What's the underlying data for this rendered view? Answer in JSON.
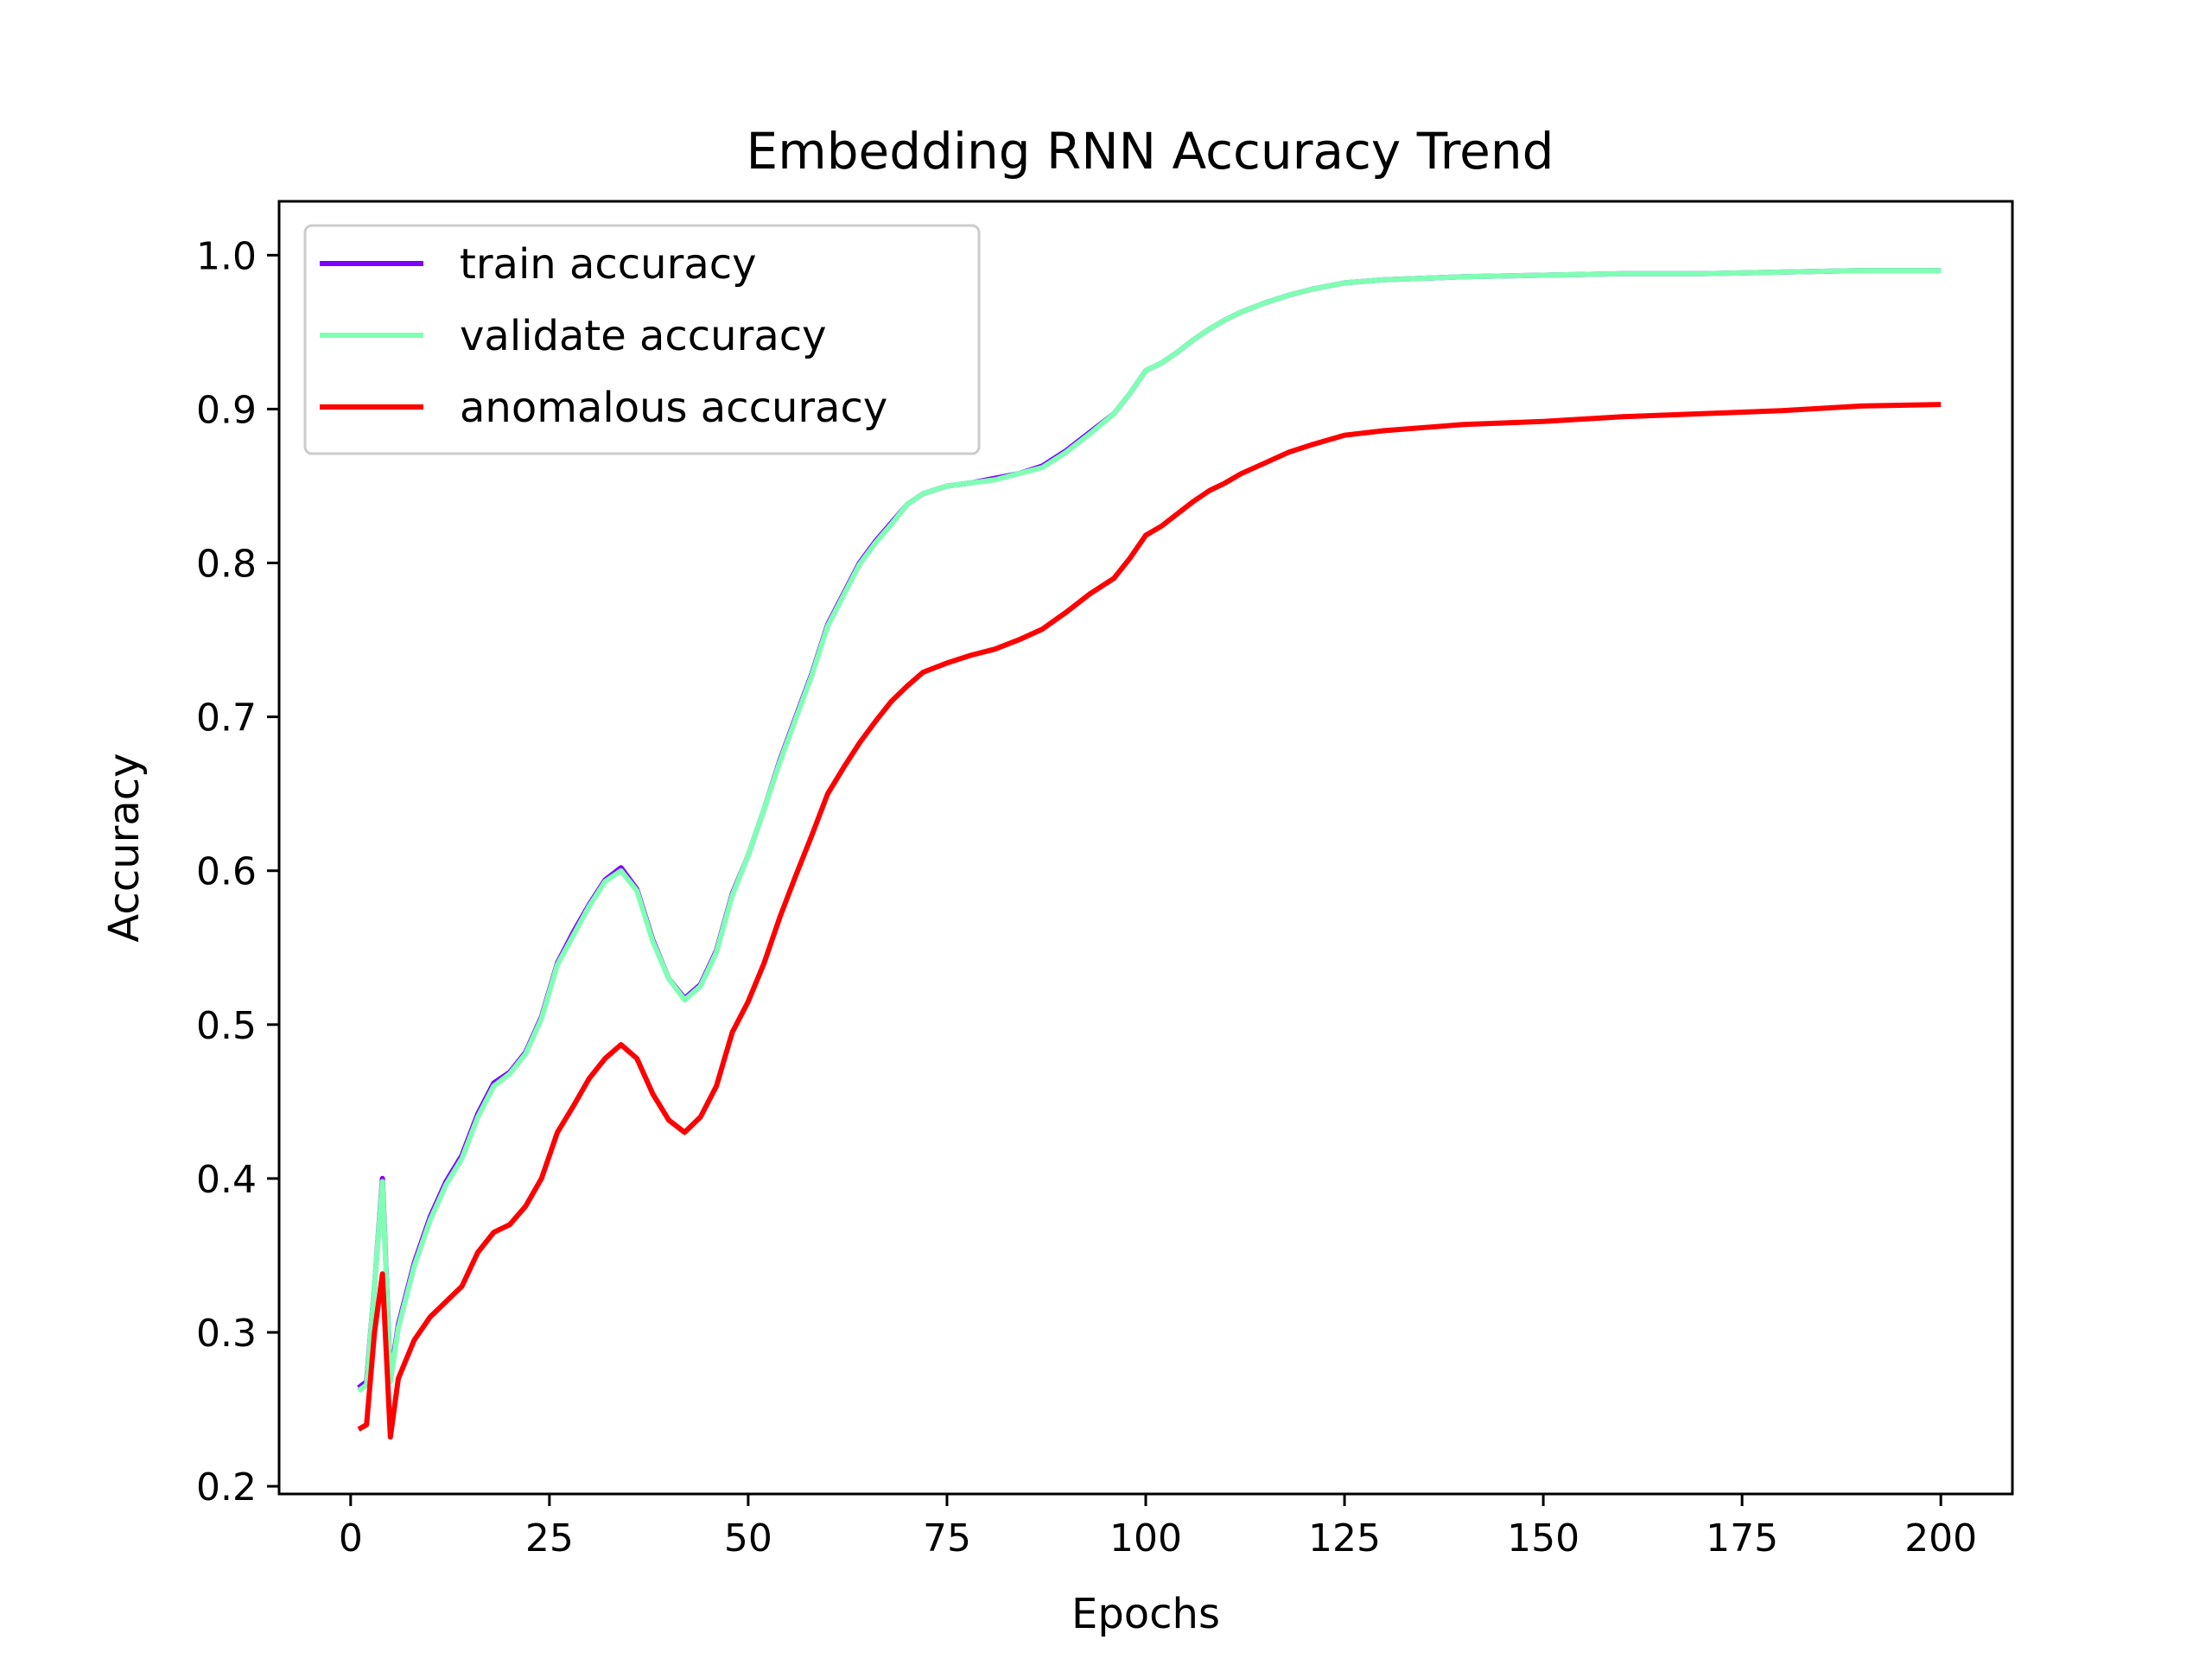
{
  "chart_data": {
    "type": "line",
    "title": "Embedding RNN Accuracy Trend",
    "xlabel": "Epochs",
    "ylabel": "Accuracy",
    "xlim": [
      -9,
      209
    ],
    "ylim": [
      0.195,
      1.035
    ],
    "x_ticks": [
      0,
      25,
      50,
      75,
      100,
      125,
      150,
      175,
      200
    ],
    "y_ticks": [
      0.2,
      0.3,
      0.4,
      0.5,
      0.6,
      0.7,
      0.8,
      0.9,
      1.0
    ],
    "x_tick_labels": [
      "0",
      "25",
      "50",
      "75",
      "100",
      "125",
      "150",
      "175",
      "200"
    ],
    "y_tick_labels": [
      "0.2",
      "0.3",
      "0.4",
      "0.5",
      "0.6",
      "0.7",
      "0.8",
      "0.9",
      "1.0"
    ],
    "grid": false,
    "legend_position": "top-left",
    "series": [
      {
        "name": "train accuracy",
        "color": "#8000ff",
        "points": [
          [
            1,
            0.264
          ],
          [
            2,
            0.268
          ],
          [
            3,
            0.33
          ],
          [
            4,
            0.4
          ],
          [
            5,
            0.27
          ],
          [
            6,
            0.305
          ],
          [
            8,
            0.345
          ],
          [
            10,
            0.375
          ],
          [
            12,
            0.398
          ],
          [
            14,
            0.415
          ],
          [
            16,
            0.442
          ],
          [
            18,
            0.462
          ],
          [
            20,
            0.469
          ],
          [
            22,
            0.482
          ],
          [
            24,
            0.505
          ],
          [
            26,
            0.54
          ],
          [
            28,
            0.56
          ],
          [
            30,
            0.578
          ],
          [
            32,
            0.594
          ],
          [
            34,
            0.602
          ],
          [
            36,
            0.588
          ],
          [
            38,
            0.555
          ],
          [
            40,
            0.53
          ],
          [
            42,
            0.517
          ],
          [
            44,
            0.526
          ],
          [
            46,
            0.548
          ],
          [
            48,
            0.585
          ],
          [
            50,
            0.61
          ],
          [
            52,
            0.64
          ],
          [
            54,
            0.672
          ],
          [
            56,
            0.7
          ],
          [
            58,
            0.728
          ],
          [
            60,
            0.76
          ],
          [
            62,
            0.78
          ],
          [
            64,
            0.8
          ],
          [
            66,
            0.814
          ],
          [
            68,
            0.826
          ],
          [
            70,
            0.838
          ],
          [
            72,
            0.845
          ],
          [
            75,
            0.85
          ],
          [
            78,
            0.852
          ],
          [
            81,
            0.855
          ],
          [
            84,
            0.858
          ],
          [
            87,
            0.863
          ],
          [
            90,
            0.873
          ],
          [
            93,
            0.885
          ],
          [
            96,
            0.897
          ],
          [
            98,
            0.91
          ],
          [
            100,
            0.925
          ],
          [
            102,
            0.93
          ],
          [
            104,
            0.937
          ],
          [
            106,
            0.945
          ],
          [
            108,
            0.952
          ],
          [
            110,
            0.958
          ],
          [
            112,
            0.963
          ],
          [
            115,
            0.969
          ],
          [
            118,
            0.974
          ],
          [
            121,
            0.978
          ],
          [
            125,
            0.982
          ],
          [
            130,
            0.984
          ],
          [
            140,
            0.986
          ],
          [
            150,
            0.987
          ],
          [
            160,
            0.988
          ],
          [
            170,
            0.988
          ],
          [
            180,
            0.989
          ],
          [
            190,
            0.99
          ],
          [
            200,
            0.99
          ]
        ]
      },
      {
        "name": "validate accuracy",
        "color": "#80ffb4",
        "points": [
          [
            1,
            0.262
          ],
          [
            2,
            0.266
          ],
          [
            3,
            0.33
          ],
          [
            4,
            0.398
          ],
          [
            5,
            0.268
          ],
          [
            6,
            0.303
          ],
          [
            8,
            0.343
          ],
          [
            10,
            0.373
          ],
          [
            12,
            0.396
          ],
          [
            14,
            0.413
          ],
          [
            16,
            0.44
          ],
          [
            18,
            0.46
          ],
          [
            20,
            0.468
          ],
          [
            22,
            0.481
          ],
          [
            24,
            0.504
          ],
          [
            26,
            0.539
          ],
          [
            28,
            0.558
          ],
          [
            30,
            0.577
          ],
          [
            32,
            0.593
          ],
          [
            34,
            0.6
          ],
          [
            36,
            0.587
          ],
          [
            38,
            0.554
          ],
          [
            40,
            0.53
          ],
          [
            42,
            0.516
          ],
          [
            44,
            0.525
          ],
          [
            46,
            0.547
          ],
          [
            48,
            0.584
          ],
          [
            50,
            0.61
          ],
          [
            52,
            0.64
          ],
          [
            54,
            0.671
          ],
          [
            56,
            0.699
          ],
          [
            58,
            0.727
          ],
          [
            60,
            0.759
          ],
          [
            62,
            0.779
          ],
          [
            64,
            0.799
          ],
          [
            66,
            0.813
          ],
          [
            68,
            0.825
          ],
          [
            70,
            0.838
          ],
          [
            72,
            0.845
          ],
          [
            75,
            0.85
          ],
          [
            78,
            0.852
          ],
          [
            81,
            0.854
          ],
          [
            84,
            0.858
          ],
          [
            87,
            0.862
          ],
          [
            90,
            0.872
          ],
          [
            93,
            0.884
          ],
          [
            96,
            0.897
          ],
          [
            98,
            0.91
          ],
          [
            100,
            0.925
          ],
          [
            102,
            0.93
          ],
          [
            104,
            0.937
          ],
          [
            106,
            0.945
          ],
          [
            108,
            0.952
          ],
          [
            110,
            0.958
          ],
          [
            112,
            0.963
          ],
          [
            115,
            0.969
          ],
          [
            118,
            0.974
          ],
          [
            121,
            0.978
          ],
          [
            125,
            0.982
          ],
          [
            130,
            0.984
          ],
          [
            140,
            0.986
          ],
          [
            150,
            0.987
          ],
          [
            160,
            0.988
          ],
          [
            170,
            0.988
          ],
          [
            180,
            0.989
          ],
          [
            190,
            0.99
          ],
          [
            200,
            0.99
          ]
        ]
      },
      {
        "name": "anomalous accuracy",
        "color": "#ff0000",
        "points": [
          [
            1,
            0.237
          ],
          [
            2,
            0.24
          ],
          [
            3,
            0.3
          ],
          [
            4,
            0.338
          ],
          [
            5,
            0.232
          ],
          [
            6,
            0.27
          ],
          [
            8,
            0.295
          ],
          [
            10,
            0.31
          ],
          [
            12,
            0.32
          ],
          [
            14,
            0.33
          ],
          [
            16,
            0.352
          ],
          [
            18,
            0.365
          ],
          [
            20,
            0.37
          ],
          [
            22,
            0.382
          ],
          [
            24,
            0.4
          ],
          [
            26,
            0.43
          ],
          [
            28,
            0.447
          ],
          [
            30,
            0.465
          ],
          [
            32,
            0.478
          ],
          [
            34,
            0.487
          ],
          [
            36,
            0.478
          ],
          [
            38,
            0.455
          ],
          [
            40,
            0.438
          ],
          [
            42,
            0.43
          ],
          [
            44,
            0.44
          ],
          [
            46,
            0.46
          ],
          [
            48,
            0.495
          ],
          [
            50,
            0.515
          ],
          [
            52,
            0.54
          ],
          [
            54,
            0.57
          ],
          [
            56,
            0.597
          ],
          [
            58,
            0.623
          ],
          [
            60,
            0.65
          ],
          [
            62,
            0.667
          ],
          [
            64,
            0.683
          ],
          [
            66,
            0.697
          ],
          [
            68,
            0.71
          ],
          [
            70,
            0.72
          ],
          [
            72,
            0.729
          ],
          [
            75,
            0.735
          ],
          [
            78,
            0.74
          ],
          [
            81,
            0.744
          ],
          [
            84,
            0.75
          ],
          [
            87,
            0.757
          ],
          [
            90,
            0.768
          ],
          [
            93,
            0.78
          ],
          [
            96,
            0.79
          ],
          [
            98,
            0.803
          ],
          [
            100,
            0.818
          ],
          [
            102,
            0.824
          ],
          [
            104,
            0.832
          ],
          [
            106,
            0.84
          ],
          [
            108,
            0.847
          ],
          [
            110,
            0.852
          ],
          [
            112,
            0.858
          ],
          [
            115,
            0.865
          ],
          [
            118,
            0.872
          ],
          [
            121,
            0.877
          ],
          [
            125,
            0.883
          ],
          [
            130,
            0.886
          ],
          [
            140,
            0.89
          ],
          [
            150,
            0.892
          ],
          [
            160,
            0.895
          ],
          [
            170,
            0.897
          ],
          [
            180,
            0.899
          ],
          [
            190,
            0.902
          ],
          [
            200,
            0.903
          ]
        ]
      }
    ]
  }
}
